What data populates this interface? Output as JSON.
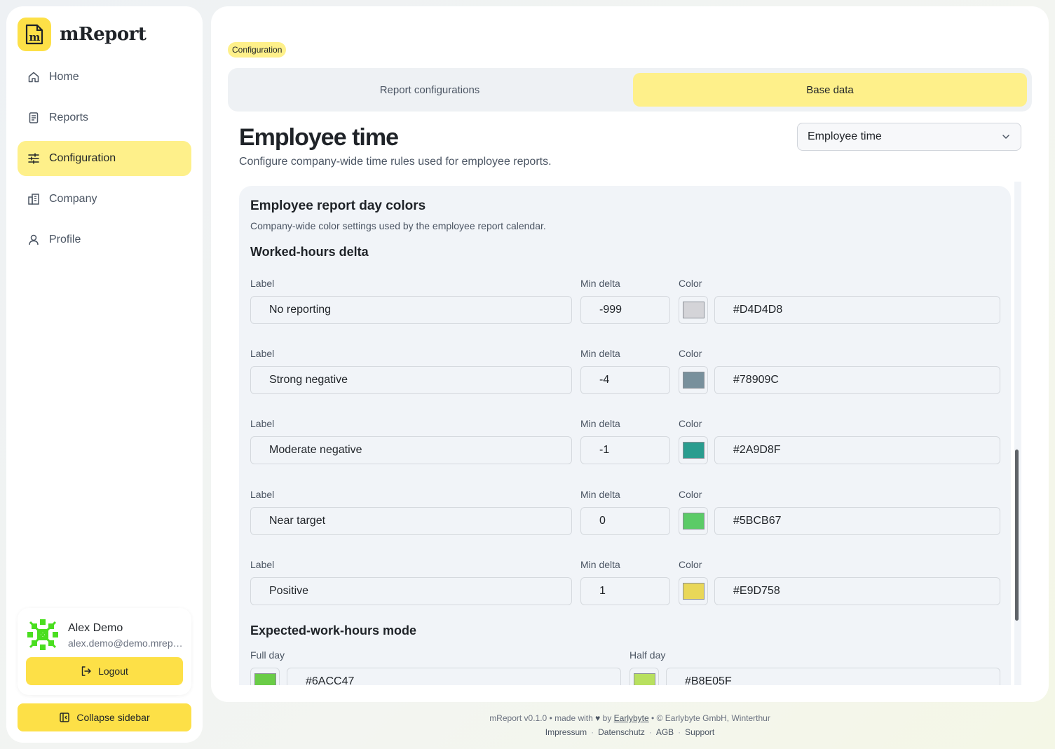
{
  "brand": {
    "name": "mReport"
  },
  "sidebar": {
    "items": [
      {
        "label": "Home",
        "icon": "home-icon"
      },
      {
        "label": "Reports",
        "icon": "report-icon"
      },
      {
        "label": "Configuration",
        "icon": "sliders-icon",
        "active": true
      },
      {
        "label": "Company",
        "icon": "building-icon"
      },
      {
        "label": "Profile",
        "icon": "user-icon"
      }
    ],
    "user": {
      "name": "Alex Demo",
      "email": "alex.demo@demo.mreport.ch"
    },
    "logout_label": "Logout",
    "collapse_label": "Collapse sidebar"
  },
  "main": {
    "breadcrumb": "Configuration",
    "tabs": [
      {
        "label": "Report configurations",
        "active": false
      },
      {
        "label": "Base data",
        "active": true
      }
    ],
    "title": "Employee time",
    "subtitle": "Configure company-wide time rules used for employee reports.",
    "select_value": "Employee time",
    "section": {
      "title": "Employee report day colors",
      "description": "Company-wide color settings used by the employee report calendar.",
      "delta_title": "Worked-hours delta",
      "col_label": "Label",
      "col_min_delta": "Min delta",
      "col_color": "Color",
      "rows": [
        {
          "label": "No reporting",
          "min_delta": "-999",
          "color": "#D4D4D8"
        },
        {
          "label": "Strong negative",
          "min_delta": "-4",
          "color": "#78909C"
        },
        {
          "label": "Moderate negative",
          "min_delta": "-1",
          "color": "#2A9D8F"
        },
        {
          "label": "Near target",
          "min_delta": "0",
          "color": "#5BCB67"
        },
        {
          "label": "Positive",
          "min_delta": "1",
          "color": "#E9D758"
        }
      ],
      "mode_title": "Expected-work-hours mode",
      "full_day_label": "Full day",
      "full_day_color": "#6ACC47",
      "half_day_label": "Half day",
      "half_day_color": "#B8E05F"
    }
  },
  "footer": {
    "version": "mReport v0.1.0",
    "made_with": "made with",
    "heart": "♥",
    "by": "by",
    "author": "Earlybyte",
    "copyright": "© Earlybyte GmbH, Winterthur",
    "links": [
      "Impressum",
      "Datenschutz",
      "AGB",
      "Support"
    ]
  },
  "colors": {
    "accent": "#FDE047",
    "accent_light": "#FEF08A"
  }
}
